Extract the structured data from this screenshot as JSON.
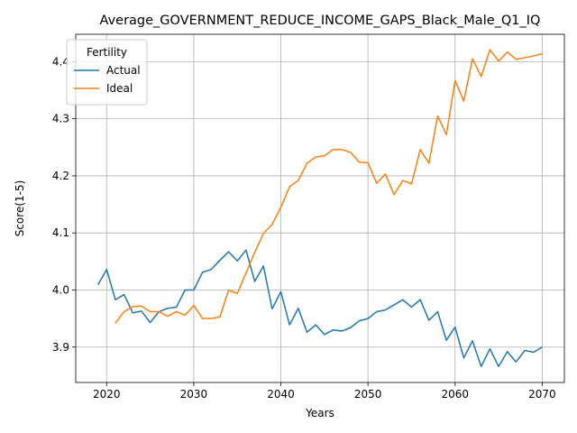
{
  "chart_data": {
    "type": "line",
    "title": "Average_GOVERNMENT_REDUCE_INCOME_GAPS_Black_Male_Q1_IQ",
    "xlabel": "Years",
    "ylabel": "Score(1-5)",
    "xlim": [
      2016.45,
      2072.55
    ],
    "ylim": [
      3.838,
      4.448
    ],
    "xticks": [
      2020,
      2030,
      2040,
      2050,
      2060,
      2070
    ],
    "yticks": [
      3.9,
      4.0,
      4.1,
      4.2,
      4.3,
      4.4
    ],
    "grid": true,
    "legend": {
      "title": "Fertility",
      "placement": "top-left"
    },
    "series": [
      {
        "name": "Actual",
        "color": "#1f77b4",
        "x": [
          2019,
          2020,
          2021,
          2022,
          2023,
          2024,
          2025,
          2026,
          2027,
          2028,
          2029,
          2030,
          2031,
          2032,
          2033,
          2034,
          2035,
          2036,
          2037,
          2038,
          2039,
          2040,
          2041,
          2042,
          2043,
          2044,
          2045,
          2046,
          2047,
          2048,
          2049,
          2050,
          2051,
          2052,
          2053,
          2054,
          2055,
          2056,
          2057,
          2058,
          2059,
          2060,
          2061,
          2062,
          2063,
          2064,
          2065,
          2066,
          2067,
          2068,
          2069,
          2070
        ],
        "y": [
          4.009,
          4.036,
          3.983,
          3.992,
          3.96,
          3.963,
          3.943,
          3.962,
          3.968,
          3.97,
          4.0,
          4.0,
          4.031,
          4.036,
          4.052,
          4.067,
          4.051,
          4.07,
          4.015,
          4.042,
          3.967,
          3.997,
          3.939,
          3.968,
          3.926,
          3.939,
          3.922,
          3.93,
          3.928,
          3.934,
          3.946,
          3.95,
          3.962,
          3.965,
          3.974,
          3.983,
          3.97,
          3.983,
          3.947,
          3.962,
          3.912,
          3.935,
          3.881,
          3.911,
          3.866,
          3.897,
          3.866,
          3.892,
          3.874,
          3.894,
          3.891,
          3.9
        ]
      },
      {
        "name": "Ideal",
        "color": "#ff7f0e",
        "x": [
          2021,
          2022,
          2023,
          2024,
          2025,
          2026,
          2027,
          2028,
          2029,
          2030,
          2031,
          2032,
          2033,
          2034,
          2035,
          2036,
          2037,
          2038,
          2039,
          2040,
          2041,
          2042,
          2043,
          2044,
          2045,
          2046,
          2047,
          2048,
          2049,
          2050,
          2051,
          2052,
          2053,
          2054,
          2055,
          2056,
          2057,
          2058,
          2059,
          2060,
          2061,
          2062,
          2063,
          2064,
          2065,
          2066,
          2067,
          2068,
          2069,
          2070
        ],
        "y": [
          3.942,
          3.962,
          3.971,
          3.972,
          3.962,
          3.962,
          3.954,
          3.962,
          3.956,
          3.973,
          3.95,
          3.95,
          3.953,
          4.0,
          3.994,
          4.03,
          4.066,
          4.099,
          4.115,
          4.145,
          4.181,
          4.192,
          4.222,
          4.233,
          4.235,
          4.246,
          4.246,
          4.241,
          4.224,
          4.223,
          4.187,
          4.203,
          4.167,
          4.192,
          4.186,
          4.246,
          4.222,
          4.305,
          4.272,
          4.367,
          4.331,
          4.405,
          4.374,
          4.421,
          4.401,
          4.417,
          4.404,
          4.407,
          4.41,
          4.414
        ]
      }
    ]
  }
}
